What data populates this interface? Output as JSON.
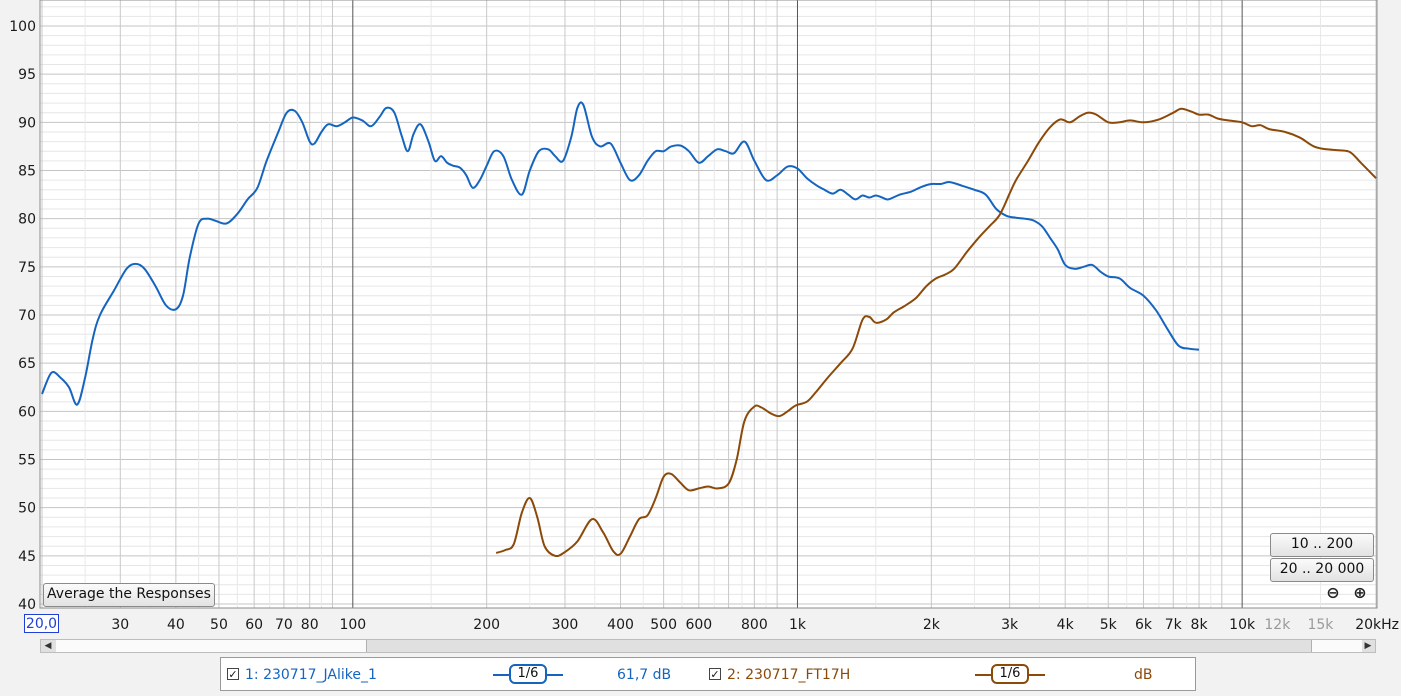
{
  "chart_data": {
    "type": "line",
    "x_scale": "log",
    "xlim": [
      20,
      20000
    ],
    "ylim": [
      40,
      102
    ],
    "y_ticks": [
      40,
      45,
      50,
      55,
      60,
      65,
      70,
      75,
      80,
      85,
      90,
      95,
      100
    ],
    "x_ticks": [
      {
        "value": 30,
        "label": "30",
        "dim": false
      },
      {
        "value": 40,
        "label": "40",
        "dim": false
      },
      {
        "value": 50,
        "label": "50",
        "dim": false
      },
      {
        "value": 60,
        "label": "60",
        "dim": false
      },
      {
        "value": 70,
        "label": "70",
        "dim": false
      },
      {
        "value": 80,
        "label": "80",
        "dim": false
      },
      {
        "value": 100,
        "label": "100",
        "dim": false
      },
      {
        "value": 200,
        "label": "200",
        "dim": false
      },
      {
        "value": 300,
        "label": "300",
        "dim": false
      },
      {
        "value": 400,
        "label": "400",
        "dim": false
      },
      {
        "value": 500,
        "label": "500",
        "dim": false
      },
      {
        "value": 600,
        "label": "600",
        "dim": false
      },
      {
        "value": 800,
        "label": "800",
        "dim": false
      },
      {
        "value": 1000,
        "label": "1k",
        "dim": false
      },
      {
        "value": 2000,
        "label": "2k",
        "dim": false
      },
      {
        "value": 3000,
        "label": "3k",
        "dim": false
      },
      {
        "value": 4000,
        "label": "4k",
        "dim": false
      },
      {
        "value": 5000,
        "label": "5k",
        "dim": false
      },
      {
        "value": 6000,
        "label": "6k",
        "dim": false
      },
      {
        "value": 7000,
        "label": "7k",
        "dim": false
      },
      {
        "value": 8000,
        "label": "8k",
        "dim": false
      },
      {
        "value": 10000,
        "label": "10k",
        "dim": false
      },
      {
        "value": 12000,
        "label": "12k",
        "dim": true
      },
      {
        "value": 15000,
        "label": "15k",
        "dim": true
      },
      {
        "value": 20000,
        "label": "20kHz",
        "dim": false
      }
    ],
    "grid": true,
    "series": [
      {
        "name": "1: 230717_JAlike_1",
        "color": "#1565c0",
        "points": [
          [
            20,
            61.8
          ],
          [
            21,
            64
          ],
          [
            22,
            63.5
          ],
          [
            23,
            62.5
          ],
          [
            24,
            60.7
          ],
          [
            25,
            63.5
          ],
          [
            26,
            67.5
          ],
          [
            27,
            70
          ],
          [
            29,
            72.5
          ],
          [
            31,
            74.8
          ],
          [
            32.5,
            75.3
          ],
          [
            34,
            74.8
          ],
          [
            36,
            73
          ],
          [
            38,
            71
          ],
          [
            40,
            70.6
          ],
          [
            41.5,
            72
          ],
          [
            43,
            76
          ],
          [
            45,
            79.5
          ],
          [
            47,
            80
          ],
          [
            49,
            79.8
          ],
          [
            52,
            79.5
          ],
          [
            55,
            80.5
          ],
          [
            58,
            82
          ],
          [
            61,
            83.2
          ],
          [
            64,
            86
          ],
          [
            68,
            89
          ],
          [
            71,
            91
          ],
          [
            74,
            91.2
          ],
          [
            77,
            90
          ],
          [
            80,
            88
          ],
          [
            82,
            87.8
          ],
          [
            85,
            89
          ],
          [
            88,
            89.8
          ],
          [
            92,
            89.6
          ],
          [
            96,
            90
          ],
          [
            100,
            90.5
          ],
          [
            105,
            90.2
          ],
          [
            110,
            89.6
          ],
          [
            115,
            90.6
          ],
          [
            119,
            91.5
          ],
          [
            124,
            91
          ],
          [
            129,
            88.5
          ],
          [
            133,
            87
          ],
          [
            137,
            88.8
          ],
          [
            142,
            89.8
          ],
          [
            148,
            88
          ],
          [
            153,
            86
          ],
          [
            158,
            86.5
          ],
          [
            163,
            85.8
          ],
          [
            168,
            85.5
          ],
          [
            174,
            85.3
          ],
          [
            180,
            84.5
          ],
          [
            186,
            83.2
          ],
          [
            193,
            84
          ],
          [
            200,
            85.5
          ],
          [
            208,
            87
          ],
          [
            218,
            86.5
          ],
          [
            228,
            84
          ],
          [
            240,
            82.5
          ],
          [
            250,
            85
          ],
          [
            262,
            87
          ],
          [
            275,
            87.2
          ],
          [
            285,
            86.5
          ],
          [
            297,
            86
          ],
          [
            310,
            88.5
          ],
          [
            320,
            91.5
          ],
          [
            330,
            91.8
          ],
          [
            345,
            88.5
          ],
          [
            360,
            87.5
          ],
          [
            380,
            87.8
          ],
          [
            400,
            85.8
          ],
          [
            420,
            84
          ],
          [
            440,
            84.5
          ],
          [
            460,
            86
          ],
          [
            480,
            87
          ],
          [
            500,
            87
          ],
          [
            520,
            87.5
          ],
          [
            545,
            87.6
          ],
          [
            570,
            87
          ],
          [
            600,
            85.8
          ],
          [
            630,
            86.5
          ],
          [
            660,
            87.2
          ],
          [
            690,
            87
          ],
          [
            720,
            86.8
          ],
          [
            760,
            88
          ],
          [
            800,
            86
          ],
          [
            850,
            84
          ],
          [
            900,
            84.5
          ],
          [
            950,
            85.4
          ],
          [
            1000,
            85.2
          ],
          [
            1050,
            84.2
          ],
          [
            1100,
            83.5
          ],
          [
            1150,
            83
          ],
          [
            1200,
            82.6
          ],
          [
            1250,
            83
          ],
          [
            1300,
            82.5
          ],
          [
            1350,
            82
          ],
          [
            1400,
            82.4
          ],
          [
            1450,
            82.2
          ],
          [
            1500,
            82.4
          ],
          [
            1550,
            82.2
          ],
          [
            1600,
            82
          ],
          [
            1700,
            82.5
          ],
          [
            1800,
            82.8
          ],
          [
            1900,
            83.3
          ],
          [
            2000,
            83.6
          ],
          [
            2100,
            83.6
          ],
          [
            2200,
            83.8
          ],
          [
            2350,
            83.4
          ],
          [
            2500,
            83
          ],
          [
            2650,
            82.5
          ],
          [
            2800,
            81
          ],
          [
            2950,
            80.3
          ],
          [
            3100,
            80.1
          ],
          [
            3250,
            80
          ],
          [
            3400,
            79.8
          ],
          [
            3550,
            79.2
          ],
          [
            3700,
            78
          ],
          [
            3850,
            76.8
          ],
          [
            4000,
            75.2
          ],
          [
            4200,
            74.8
          ],
          [
            4400,
            75
          ],
          [
            4600,
            75.2
          ],
          [
            4800,
            74.5
          ],
          [
            5000,
            74
          ],
          [
            5300,
            73.8
          ],
          [
            5600,
            72.8
          ],
          [
            6000,
            72
          ],
          [
            6400,
            70.5
          ],
          [
            6800,
            68.5
          ],
          [
            7200,
            66.8
          ],
          [
            7600,
            66.5
          ],
          [
            8000,
            66.4
          ]
        ]
      },
      {
        "name": "2: 230717_FT17H",
        "color": "#8b4a0a",
        "points": [
          [
            210,
            45.3
          ],
          [
            220,
            45.6
          ],
          [
            230,
            46.2
          ],
          [
            240,
            49.5
          ],
          [
            250,
            51
          ],
          [
            260,
            49
          ],
          [
            270,
            46
          ],
          [
            285,
            45
          ],
          [
            300,
            45.4
          ],
          [
            320,
            46.5
          ],
          [
            345,
            48.8
          ],
          [
            365,
            47.5
          ],
          [
            385,
            45.5
          ],
          [
            400,
            45.2
          ],
          [
            420,
            47
          ],
          [
            440,
            48.8
          ],
          [
            460,
            49.2
          ],
          [
            480,
            51
          ],
          [
            500,
            53.2
          ],
          [
            520,
            53.5
          ],
          [
            545,
            52.6
          ],
          [
            570,
            51.8
          ],
          [
            600,
            52
          ],
          [
            630,
            52.2
          ],
          [
            660,
            52
          ],
          [
            700,
            52.5
          ],
          [
            730,
            55
          ],
          [
            760,
            59
          ],
          [
            800,
            60.5
          ],
          [
            830,
            60.4
          ],
          [
            870,
            59.8
          ],
          [
            910,
            59.5
          ],
          [
            950,
            60
          ],
          [
            990,
            60.6
          ],
          [
            1050,
            61
          ],
          [
            1100,
            62
          ],
          [
            1170,
            63.5
          ],
          [
            1250,
            65
          ],
          [
            1330,
            66.5
          ],
          [
            1400,
            69.5
          ],
          [
            1450,
            69.8
          ],
          [
            1500,
            69.2
          ],
          [
            1580,
            69.5
          ],
          [
            1650,
            70.3
          ],
          [
            1750,
            71
          ],
          [
            1850,
            71.8
          ],
          [
            1950,
            73
          ],
          [
            2050,
            73.8
          ],
          [
            2150,
            74.2
          ],
          [
            2250,
            74.8
          ],
          [
            2400,
            76.5
          ],
          [
            2500,
            77.5
          ],
          [
            2600,
            78.4
          ],
          [
            2700,
            79.2
          ],
          [
            2850,
            80.4
          ],
          [
            3000,
            82.6
          ],
          [
            3100,
            84
          ],
          [
            3300,
            86
          ],
          [
            3500,
            88
          ],
          [
            3700,
            89.5
          ],
          [
            3900,
            90.3
          ],
          [
            4100,
            90
          ],
          [
            4300,
            90.6
          ],
          [
            4500,
            91
          ],
          [
            4700,
            90.8
          ],
          [
            5000,
            90
          ],
          [
            5300,
            90
          ],
          [
            5600,
            90.2
          ],
          [
            6000,
            90
          ],
          [
            6500,
            90.3
          ],
          [
            7000,
            91
          ],
          [
            7300,
            91.4
          ],
          [
            7700,
            91.1
          ],
          [
            8000,
            90.8
          ],
          [
            8400,
            90.8
          ],
          [
            8800,
            90.4
          ],
          [
            9300,
            90.2
          ],
          [
            10000,
            90
          ],
          [
            10500,
            89.6
          ],
          [
            11000,
            89.7
          ],
          [
            11500,
            89.3
          ],
          [
            12500,
            89
          ],
          [
            13500,
            88.4
          ],
          [
            14500,
            87.5
          ],
          [
            15500,
            87.2
          ],
          [
            16500,
            87.1
          ],
          [
            17500,
            86.9
          ],
          [
            18500,
            85.8
          ],
          [
            20000,
            84.2
          ]
        ]
      }
    ]
  },
  "controls": {
    "average_button": "Average the Responses",
    "range_button_1": "10 .. 200",
    "range_button_2": "20 .. 20 000",
    "zoom_out": "⊖",
    "zoom_in": "⊕",
    "x_min_field": "20,0"
  },
  "legend": {
    "item1": {
      "checkbox": "✓",
      "name": "1: 230717_JAlike_1",
      "smoothing": "1/6",
      "value": "61,7 dB",
      "color": "#1565c0"
    },
    "item2": {
      "checkbox": "✓",
      "name": "2: 230717_FT17H",
      "smoothing": "1/6",
      "value": "dB",
      "color": "#8b4a0a"
    }
  }
}
